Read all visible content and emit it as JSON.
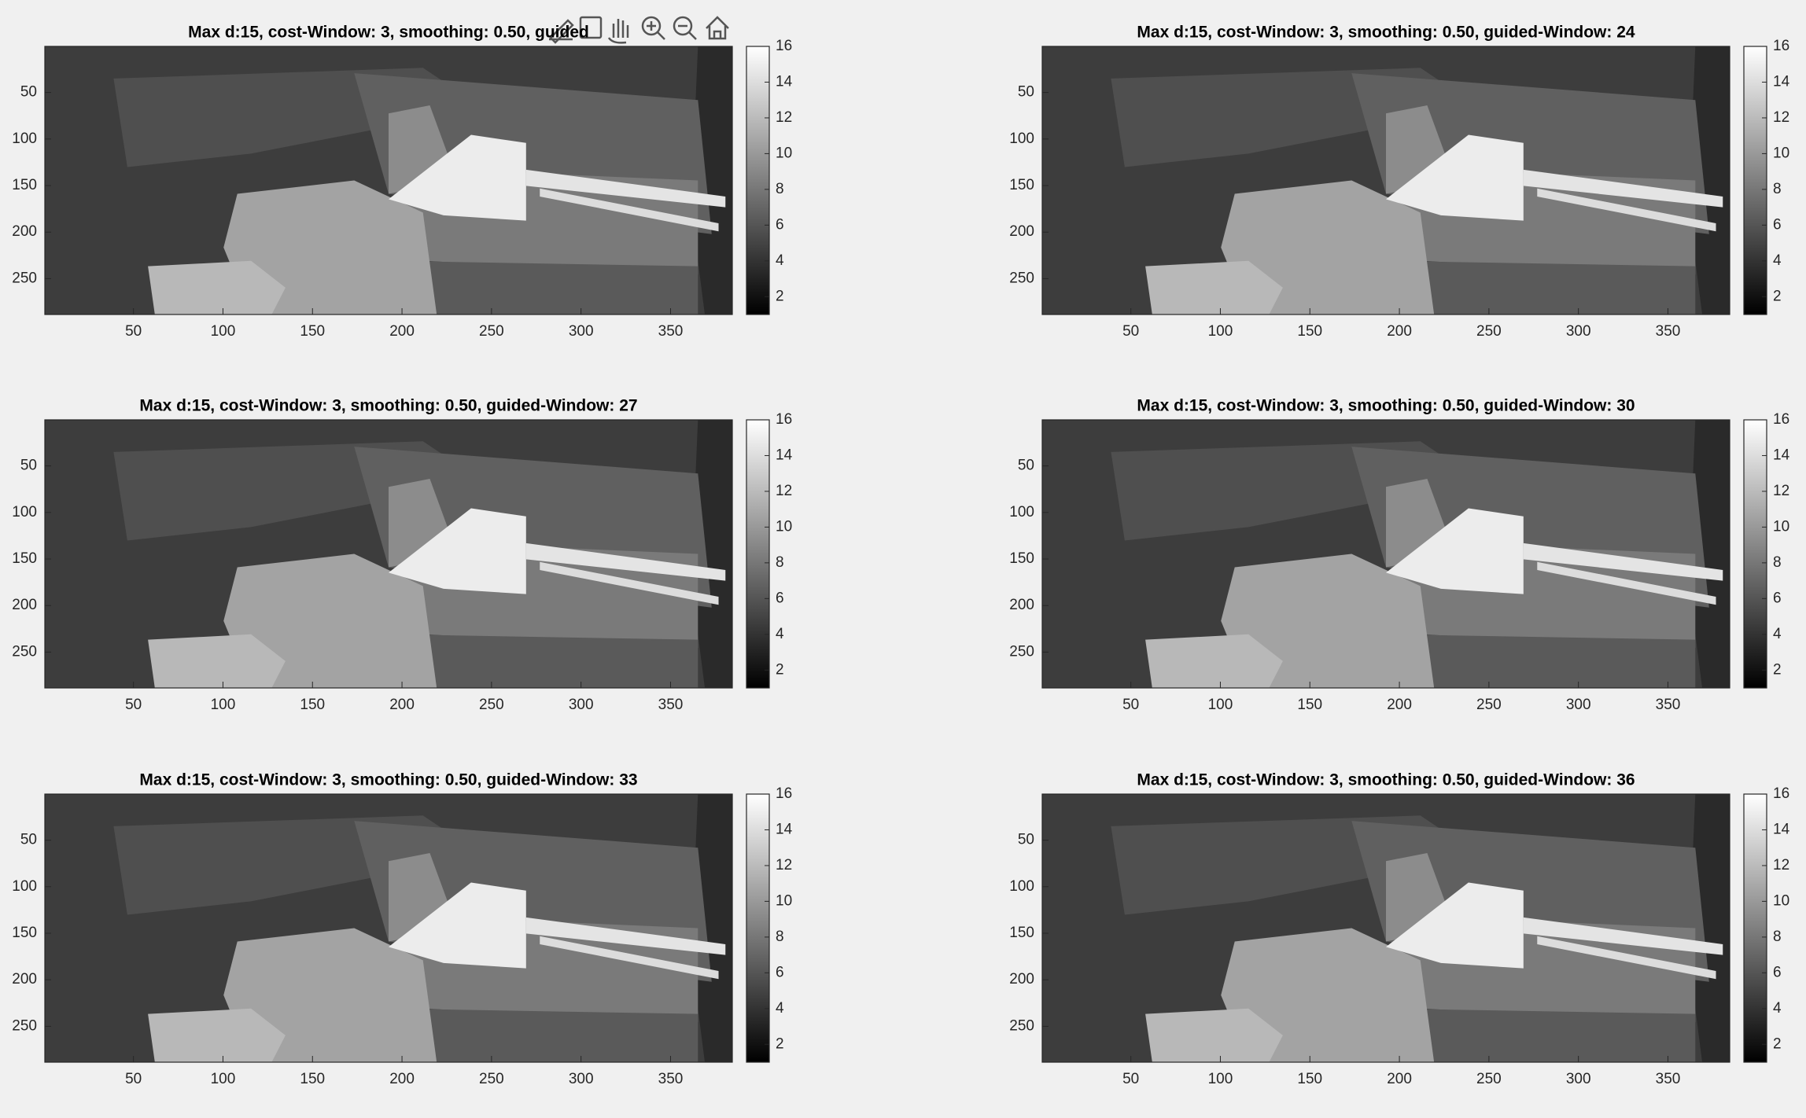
{
  "chart_data": [
    {
      "type": "image",
      "title": "Max d:15, cost-Window: 3, smoothing: 0.50, guided",
      "xlim": [
        0.5,
        384.5
      ],
      "ylim": [
        0.5,
        288.5
      ],
      "y_reversed": true,
      "xticks": [
        50,
        100,
        150,
        200,
        250,
        300,
        350
      ],
      "yticks": [
        50,
        100,
        150,
        200,
        250
      ],
      "colormap": "gray",
      "clim": [
        1,
        16
      ],
      "cticks": [
        2,
        4,
        6,
        8,
        10,
        12,
        14,
        16
      ]
    },
    {
      "type": "image",
      "title": "Max d:15, cost-Window: 3, smoothing: 0.50, guided-Window: 24",
      "xlim": [
        0.5,
        384.5
      ],
      "ylim": [
        0.5,
        288.5
      ],
      "y_reversed": true,
      "xticks": [
        50,
        100,
        150,
        200,
        250,
        300,
        350
      ],
      "yticks": [
        50,
        100,
        150,
        200,
        250
      ],
      "colormap": "gray",
      "clim": [
        1,
        16
      ],
      "cticks": [
        2,
        4,
        6,
        8,
        10,
        12,
        14,
        16
      ]
    },
    {
      "type": "image",
      "title": "Max d:15, cost-Window: 3, smoothing: 0.50, guided-Window: 27",
      "xlim": [
        0.5,
        384.5
      ],
      "ylim": [
        0.5,
        288.5
      ],
      "y_reversed": true,
      "xticks": [
        50,
        100,
        150,
        200,
        250,
        300,
        350
      ],
      "yticks": [
        50,
        100,
        150,
        200,
        250
      ],
      "colormap": "gray",
      "clim": [
        1,
        16
      ],
      "cticks": [
        2,
        4,
        6,
        8,
        10,
        12,
        14,
        16
      ]
    },
    {
      "type": "image",
      "title": "Max d:15, cost-Window: 3, smoothing: 0.50, guided-Window: 30",
      "xlim": [
        0.5,
        384.5
      ],
      "ylim": [
        0.5,
        288.5
      ],
      "y_reversed": true,
      "xticks": [
        50,
        100,
        150,
        200,
        250,
        300,
        350
      ],
      "yticks": [
        50,
        100,
        150,
        200,
        250
      ],
      "colormap": "gray",
      "clim": [
        1,
        16
      ],
      "cticks": [
        2,
        4,
        6,
        8,
        10,
        12,
        14,
        16
      ]
    },
    {
      "type": "image",
      "title": "Max d:15, cost-Window: 3, smoothing: 0.50, guided-Window: 33",
      "xlim": [
        0.5,
        384.5
      ],
      "ylim": [
        0.5,
        288.5
      ],
      "y_reversed": true,
      "xticks": [
        50,
        100,
        150,
        200,
        250,
        300,
        350
      ],
      "yticks": [
        50,
        100,
        150,
        200,
        250
      ],
      "colormap": "gray",
      "clim": [
        1,
        16
      ],
      "cticks": [
        2,
        4,
        6,
        8,
        10,
        12,
        14,
        16
      ]
    },
    {
      "type": "image",
      "title": "Max d:15, cost-Window: 3, smoothing: 0.50, guided-Window: 36",
      "xlim": [
        0.5,
        384.5
      ],
      "ylim": [
        0.5,
        288.5
      ],
      "y_reversed": true,
      "xticks": [
        50,
        100,
        150,
        200,
        250,
        300,
        350
      ],
      "yticks": [
        50,
        100,
        150,
        200,
        250
      ],
      "colormap": "gray",
      "clim": [
        1,
        16
      ],
      "cticks": [
        2,
        4,
        6,
        8,
        10,
        12,
        14,
        16
      ]
    }
  ]
}
